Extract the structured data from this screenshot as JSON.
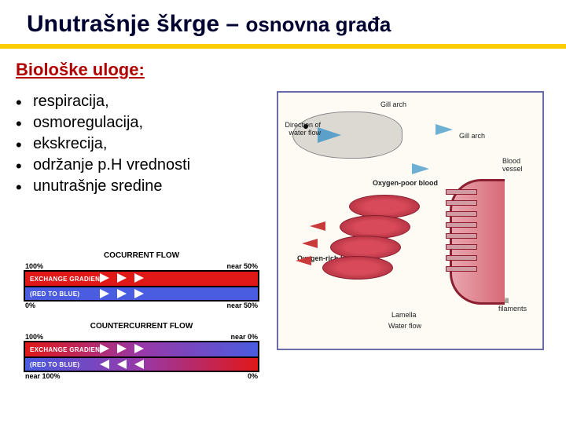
{
  "title": {
    "main": "Unutrašnje škrge – ",
    "sub": "osnovna građa"
  },
  "subtitle": "Biološke uloge:",
  "bullets": [
    "respiracija,",
    "osmoregulacija,",
    "ekskrecija,",
    "održanje p.H vrednosti",
    "unutrašnje sredine"
  ],
  "fish_labels": {
    "gill_arch": "Gill arch",
    "direction": "Direction of water flow",
    "blood_vessel": "Blood vessel",
    "oxygen_poor": "Oxygen-poor blood",
    "oxygen_rich": "Oxygen-rich blood",
    "lamella": "Lamella",
    "water_flow": "Water flow",
    "gill_filaments": "Gill filaments"
  },
  "flow": {
    "cocurrent": {
      "title": "COCURRENT FLOW",
      "top_left": "100%",
      "top_right": "near 50%",
      "bottom_left": "0%",
      "bottom_right": "near 50%",
      "bar1": "EXCHANGE GRADIENT",
      "bar2": "(RED TO BLUE)"
    },
    "countercurrent": {
      "title": "COUNTERCURRENT FLOW",
      "top_left": "100%",
      "top_right": "near 0%",
      "bottom_left": "near 100%",
      "bottom_right": "0%",
      "bar1": "EXCHANGE GRADIENT",
      "bar2": "(RED TO BLUE)"
    }
  },
  "colors": {
    "accent_yellow": "#ffcc00",
    "heading_red": "#b00000",
    "bar_red": "#e01818",
    "bar_blue": "#4a5ce0",
    "water_arrow": "#5aa0c8",
    "gill_red": "#d84a5a"
  }
}
